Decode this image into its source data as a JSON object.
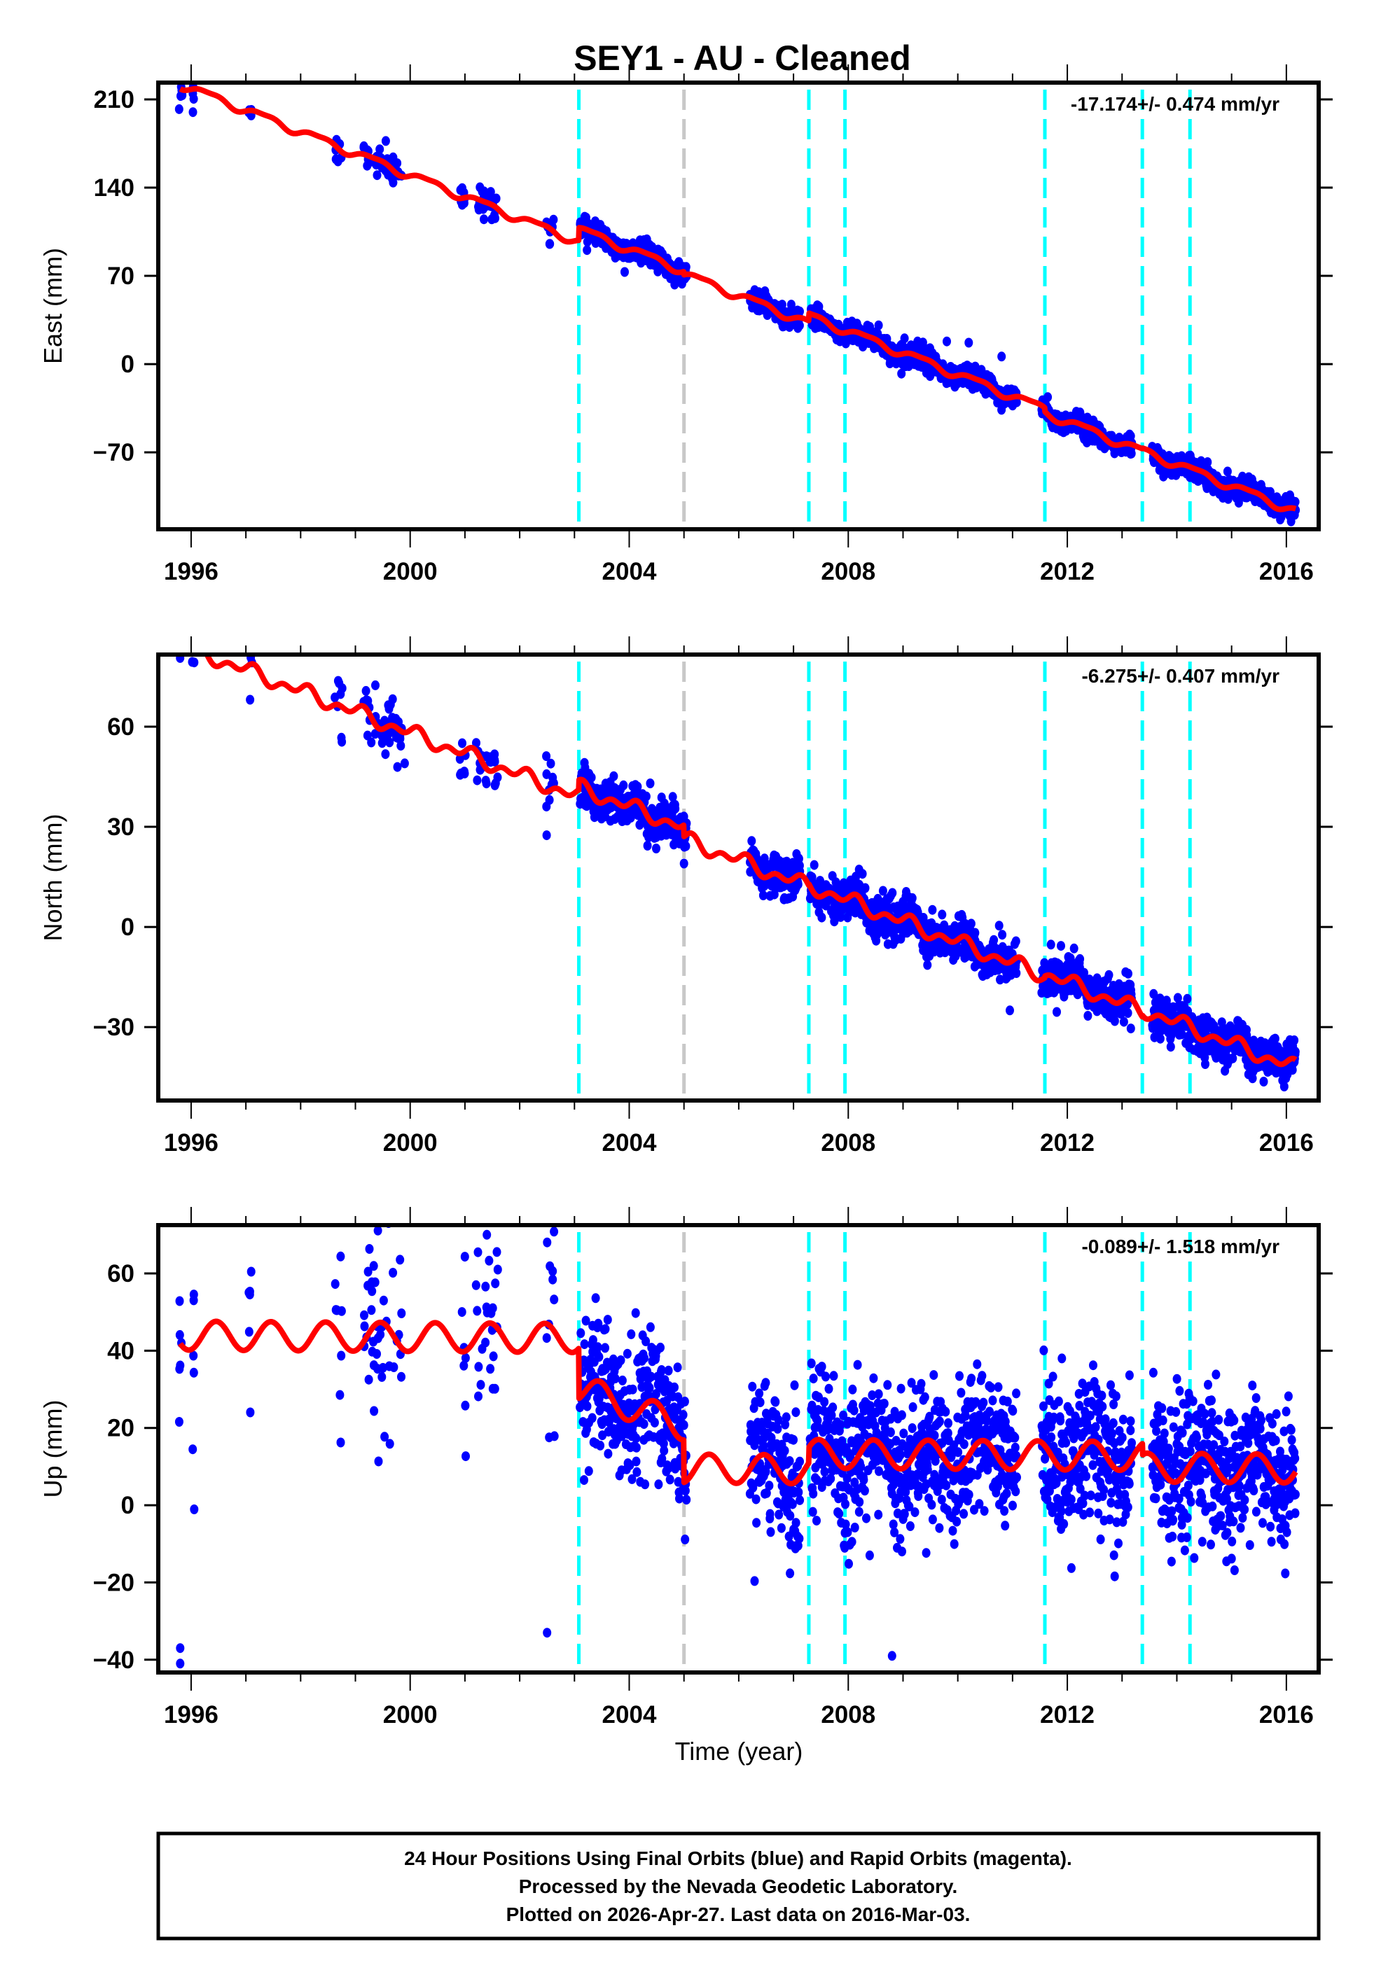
{
  "chart_data": {
    "type": "scatter",
    "title": "SEY1  - AU - Cleaned",
    "xlabel": "Time (year)",
    "x_ticks": [
      "1996",
      "2000",
      "2004",
      "2008",
      "2012",
      "2016"
    ],
    "x_tick_values": [
      1996,
      2000,
      2004,
      2008,
      2012,
      2016
    ],
    "xlim": [
      1995.4,
      2016.59
    ],
    "x_minor_tick_step": 1,
    "data_start": 1995.8,
    "data_end": 2016.17,
    "vertical_lines": [
      {
        "x": 2003.08,
        "color": "#00FFFF",
        "style": "dashed"
      },
      {
        "x": 2005.0,
        "color": "#C8C8C8",
        "style": "dashed"
      },
      {
        "x": 2007.28,
        "color": "#00FFFF",
        "style": "dashed"
      },
      {
        "x": 2007.94,
        "color": "#00FFFF",
        "style": "dashed"
      },
      {
        "x": 2011.59,
        "color": "#00FFFF",
        "style": "dashed"
      },
      {
        "x": 2013.37,
        "color": "#00FFFF",
        "style": "dashed"
      },
      {
        "x": 2014.24,
        "color": "#00FFFF",
        "style": "dashed"
      }
    ],
    "sparse_epochs": [
      [
        1995.78,
        1995.84
      ],
      [
        1996.02,
        1996.06
      ],
      [
        1997.05,
        1997.12
      ],
      [
        1998.62,
        1998.76
      ],
      [
        1999.15,
        1999.85
      ],
      [
        2000.9,
        2001.02
      ],
      [
        2001.2,
        2001.6
      ],
      [
        2002.48,
        2002.64
      ]
    ],
    "continuous_epochs": [
      [
        2003.1,
        2005.05
      ],
      [
        2006.2,
        2007.12
      ],
      [
        2007.3,
        2011.08
      ],
      [
        2011.53,
        2013.18
      ],
      [
        2013.55,
        2016.17
      ]
    ],
    "series_colors": {
      "observations": "#0000FF",
      "model": "#FF0000"
    },
    "panels": [
      {
        "name": "East",
        "ylabel": "East (mm)",
        "ylim": [
          -131,
          223.3
        ],
        "y_ticks": [
          210,
          140,
          70,
          0,
          -70
        ],
        "y_tick_labels": [
          "210",
          "140",
          "70",
          "0",
          "−70"
        ],
        "rate_text": "-17.174+/- 0.474 mm/yr",
        "model": {
          "ref_epoch": 2006.0,
          "intercept": 54.5,
          "rate": -17.174,
          "annual_sin": 2.6,
          "annual_cos": -1.4,
          "semiannual_sin": 0.8,
          "semiannual_cos": 0.6,
          "offsets": [
            {
              "epoch": 2003.08,
              "size": 10.0
            },
            {
              "epoch": 2005.0,
              "size": -2.5
            },
            {
              "epoch": 2007.28,
              "size": 6.0
            },
            {
              "epoch": 2011.59,
              "size": -3.0
            },
            {
              "epoch": 2013.37,
              "size": 0.5
            }
          ]
        },
        "scatter_sigma": 4.0,
        "outliers": [
          [
            2010.2,
            17
          ],
          [
            2010.8,
            6
          ],
          [
            2009.8,
            18
          ]
        ]
      },
      {
        "name": "North",
        "ylabel": "North (mm)",
        "ylim": [
          -52,
          81.6
        ],
        "y_ticks": [
          60,
          30,
          0,
          -30
        ],
        "y_tick_labels": [
          "60",
          "30",
          "0",
          "−30"
        ],
        "rate_text": "-6.275+/- 0.407 mm/yr",
        "model": {
          "ref_epoch": 2006.0,
          "intercept": 20.0,
          "rate": -6.275,
          "annual_sin": 0.6,
          "annual_cos": 1.4,
          "semiannual_sin": 1.2,
          "semiannual_cos": -0.6,
          "offsets": [
            {
              "epoch": 2003.08,
              "size": 3.0
            },
            {
              "epoch": 2005.0,
              "size": -3.5
            },
            {
              "epoch": 2007.28,
              "size": 0.5
            },
            {
              "epoch": 2011.59,
              "size": 0.5
            },
            {
              "epoch": 2013.37,
              "size": 0.5
            }
          ]
        },
        "scatter_sigma": 3.0,
        "outliers": [
          [
            2005.0,
            19
          ],
          [
            2010.95,
            -25
          ],
          [
            1999.9,
            49
          ]
        ]
      },
      {
        "name": "Up",
        "ylabel": "Up (mm)",
        "ylim": [
          -43.3,
          72.5
        ],
        "y_ticks": [
          60,
          40,
          20,
          0,
          -20,
          -40
        ],
        "y_tick_labels": [
          "60",
          "40",
          "20",
          "0",
          "−20",
          "−40"
        ],
        "rate_text": "-0.089+/- 1.518 mm/yr",
        "model": {
          "ref_epoch": 2006.0,
          "intercept": 19.0,
          "rate": -0.089,
          "annual_sin": 1.0,
          "annual_cos": -3.6,
          "semiannual_sin": 0.0,
          "semiannual_cos": 0.0,
          "offsets": [
            {
              "epoch": 2003.08,
              "size": -13.0
            },
            {
              "epoch": 2005.0,
              "size": -11.0
            },
            {
              "epoch": 2007.28,
              "size": 4.0
            },
            {
              "epoch": 2011.59,
              "size": 0.0
            },
            {
              "epoch": 2013.37,
              "size": -3.0
            }
          ],
          "drift_segments": [
            {
              "from": 2003.08,
              "to": 2005.0,
              "rate": -5.0
            }
          ]
        },
        "scatter_sigma": 9.0,
        "outliers": [
          [
            2001.4,
            70
          ],
          [
            2001.6,
            61
          ],
          [
            2002.5,
            -33
          ],
          [
            2008.8,
            -39
          ],
          [
            2011.9,
            38
          ],
          [
            1995.8,
            -41
          ],
          [
            1995.8,
            -37
          ]
        ]
      }
    ]
  },
  "footer": {
    "line1": "24 Hour Positions Using Final Orbits (blue) and Rapid Orbits (magenta).",
    "line2": "Processed by the Nevada Geodetic Laboratory.",
    "line3": "Plotted on 2026-Apr-27. Last data on 2016-Mar-03."
  }
}
